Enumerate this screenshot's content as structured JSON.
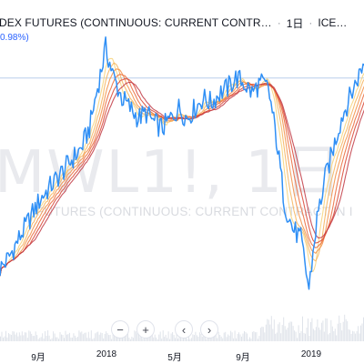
{
  "header": {
    "title": "DEX FUTURES (CONTINUOUS: CURRENT CONTR…",
    "interval": "1日",
    "exchange": "ICE…"
  },
  "change_text": "0.98%)",
  "watermark": {
    "symbol": "MWL1!, 1日",
    "name": "FUTURES (CONTINUOUS: CURRENT CONTRACT IN I"
  },
  "controls": {
    "zoom_out": "−",
    "zoom_in": "+",
    "back": "‹",
    "forward": "›"
  },
  "colors": {
    "price": "#2f8ff5",
    "ribbon": [
      "#f7d27a",
      "#f6b35c",
      "#f28f45",
      "#ea6a3a",
      "#d94534",
      "#c13a44"
    ],
    "price_line": "#b9cdea"
  },
  "chart_data": {
    "type": "line",
    "x_ticks": [
      "9月",
      "2018",
      "5月",
      "9月",
      "2019"
    ],
    "series": [
      {
        "values": [
          42,
          44,
          47,
          50,
          53,
          56,
          58,
          60,
          62,
          64,
          66,
          70,
          78,
          86,
          80,
          76,
          74,
          72,
          73,
          71,
          70,
          72,
          74,
          72,
          74,
          76,
          75,
          77,
          78,
          80,
          79,
          77,
          79,
          78,
          68,
          55,
          50,
          48,
          38,
          52,
          60,
          66,
          72,
          76,
          80,
          84
        ]
      }
    ]
  }
}
